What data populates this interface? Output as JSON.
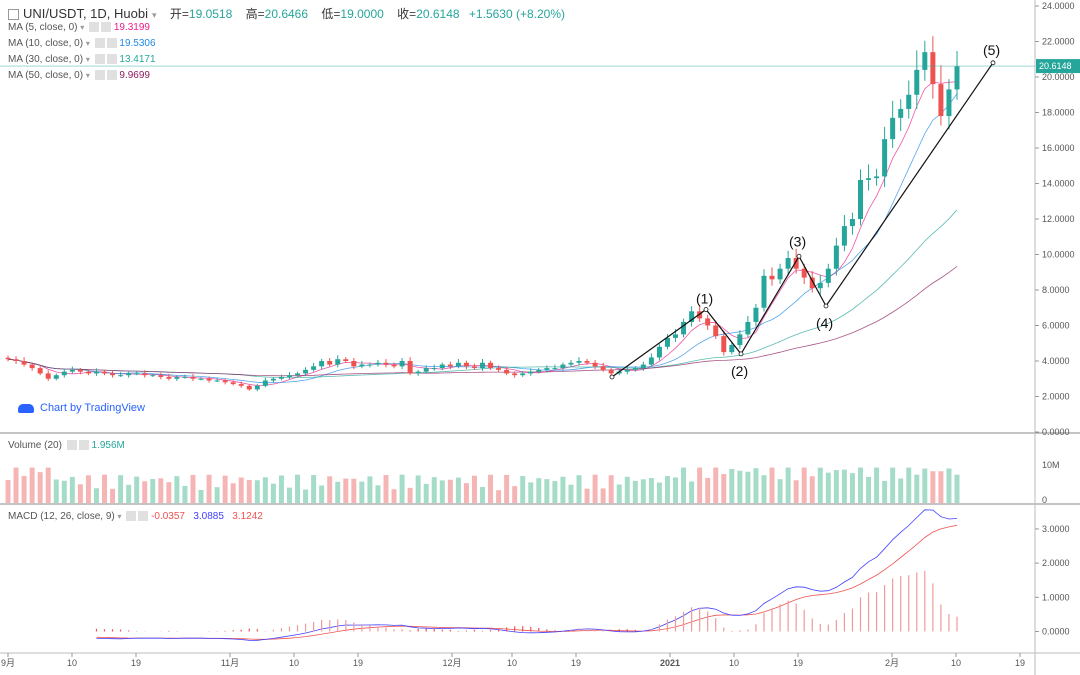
{
  "header": {
    "symbol": "UNI/USDT, 1D, Huobi",
    "open_label": "开",
    "open": "19.0518",
    "high_label": "高",
    "high": "20.6466",
    "low_label": "低",
    "low": "19.0000",
    "close_label": "收",
    "close": "20.6148",
    "change": "+1.5630 (+8.20%)"
  },
  "ma_indicators": [
    {
      "label": "MA (5, close, 0)",
      "value": "19.3199",
      "color": "#e91e8c"
    },
    {
      "label": "MA (10, close, 0)",
      "value": "19.5306",
      "color": "#1e88e5"
    },
    {
      "label": "MA (30, close, 0)",
      "value": "13.4171",
      "color": "#26a69a"
    },
    {
      "label": "MA (50, close, 0)",
      "value": "9.9699",
      "color": "#8e1b5e"
    }
  ],
  "watermark": "Chart by TradingView",
  "volume_panel": {
    "label": "Volume (20)",
    "value": "1.956M",
    "value_color": "#26a69a"
  },
  "macd_panel": {
    "label": "MACD (12, 26, close, 9)",
    "hist": "-0.0357",
    "hist_color": "#ef5350",
    "macd": "3.0885",
    "macd_color": "#3f3fff",
    "signal": "3.1242",
    "signal_color": "#ef5350"
  },
  "colors": {
    "up": "#26a69a",
    "down": "#ef5350",
    "up_vol": "#a5dcc8",
    "down_vol": "#f6b5b5",
    "last_price_bg": "#26a69a"
  },
  "chart_data": {
    "type": "candlestick",
    "price_axis": {
      "ticks": [
        "24.0000",
        "22.0000",
        "20.0000",
        "18.0000",
        "16.0000",
        "14.0000",
        "12.0000",
        "10.0000",
        "8.0000",
        "6.0000",
        "4.0000",
        "2.0000",
        "0.0000"
      ],
      "ylim": [
        0,
        24
      ]
    },
    "last_price": "20.6148",
    "volume_axis": {
      "ticks": [
        "10M",
        "0"
      ]
    },
    "macd_axis": {
      "ticks": [
        "3.0000",
        "2.0000",
        "1.0000",
        "0.0000"
      ],
      "ylim": [
        -0.6,
        3.7
      ]
    },
    "x_axis_labels": [
      "9月",
      "10",
      "19",
      "11月",
      "10",
      "19",
      "12月",
      "10",
      "19",
      "2021",
      "10",
      "19",
      "2月",
      "10",
      "19"
    ],
    "wave_labels": [
      "(1)",
      "(2)",
      "(3)",
      "(4)",
      "(5)"
    ],
    "wave_points": [
      [
        0,
        3.1
      ],
      [
        1,
        6.9
      ],
      [
        2,
        4.4
      ],
      [
        3,
        9.9
      ],
      [
        4,
        7.1
      ],
      [
        5,
        20.8
      ]
    ],
    "closes": [
      4.1,
      4.0,
      3.8,
      3.6,
      3.3,
      3.0,
      3.2,
      3.4,
      3.5,
      3.4,
      3.3,
      3.4,
      3.3,
      3.2,
      3.2,
      3.3,
      3.3,
      3.2,
      3.2,
      3.1,
      3.0,
      3.1,
      3.1,
      3.0,
      3.0,
      2.9,
      2.9,
      2.8,
      2.7,
      2.6,
      2.4,
      2.6,
      2.9,
      3.0,
      3.1,
      3.2,
      3.3,
      3.5,
      3.7,
      4.0,
      3.8,
      4.1,
      4.0,
      3.7,
      3.8,
      3.8,
      3.9,
      3.8,
      3.7,
      4.0,
      3.3,
      3.4,
      3.6,
      3.6,
      3.8,
      3.7,
      3.9,
      3.7,
      3.6,
      3.9,
      3.6,
      3.5,
      3.3,
      3.2,
      3.3,
      3.4,
      3.5,
      3.6,
      3.6,
      3.8,
      3.9,
      4.0,
      3.9,
      3.7,
      3.5,
      3.3,
      3.4,
      3.5,
      3.6,
      3.8,
      4.2,
      4.8,
      5.3,
      5.5,
      6.2,
      6.8,
      6.4,
      6.0,
      5.4,
      4.5,
      4.9,
      5.5,
      6.2,
      7.0,
      8.8,
      8.6,
      9.2,
      9.8,
      9.2,
      8.7,
      8.1,
      8.4,
      9.2,
      10.5,
      11.6,
      12.0,
      14.2,
      14.3,
      14.4,
      16.5,
      17.7,
      18.2,
      19.0,
      20.4,
      21.4,
      19.6,
      17.8,
      19.3,
      20.6
    ]
  }
}
